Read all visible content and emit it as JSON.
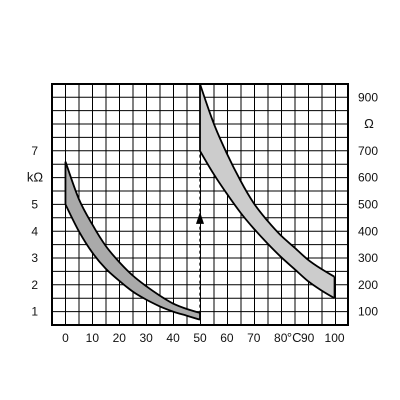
{
  "chart_data": {
    "type": "area",
    "title": "",
    "x_ticks": [
      "0",
      "10",
      "20",
      "30",
      "40",
      "50",
      "60",
      "70",
      "80",
      "90",
      "100"
    ],
    "x_unit": "°C",
    "xlim": [
      -5,
      105
    ],
    "y_left": {
      "unit": "kΩ",
      "ticks": [
        "1",
        "2",
        "3",
        "4",
        "5",
        "7"
      ],
      "tick_values": [
        1,
        2,
        3,
        4,
        5,
        7
      ],
      "range": [
        0.5,
        9.5
      ]
    },
    "y_right": {
      "unit": "Ω",
      "ticks": [
        "100",
        "200",
        "300",
        "400",
        "500",
        "600",
        "700",
        "900"
      ],
      "tick_values": [
        100,
        200,
        300,
        400,
        500,
        600,
        700,
        900
      ],
      "range": [
        50,
        950
      ]
    },
    "grid": true,
    "series": [
      {
        "axis": "left",
        "fill": "#aaaaaa",
        "x": [
          0,
          5,
          10,
          15,
          20,
          25,
          30,
          35,
          40,
          45,
          50
        ],
        "upper": [
          6.6,
          5.2,
          4.25,
          3.45,
          2.85,
          2.35,
          1.95,
          1.6,
          1.3,
          1.1,
          0.95
        ],
        "lower": [
          5.0,
          4.0,
          3.2,
          2.6,
          2.15,
          1.75,
          1.45,
          1.2,
          1.0,
          0.85,
          0.7
        ]
      },
      {
        "axis": "right",
        "fill": "#cccccc",
        "x": [
          50,
          55,
          60,
          65,
          70,
          75,
          80,
          85,
          90,
          95,
          100
        ],
        "upper": [
          950,
          805,
          690,
          590,
          505,
          440,
          385,
          340,
          295,
          260,
          230
        ],
        "lower": [
          700,
          615,
          540,
          470,
          410,
          355,
          305,
          260,
          215,
          180,
          150
        ]
      }
    ],
    "annotation": {
      "type": "dashed-arrow",
      "x": 50,
      "from_value_left": 0.7,
      "to_value_left": 4.5,
      "dashed_line_to_value_left": 7.0
    }
  }
}
